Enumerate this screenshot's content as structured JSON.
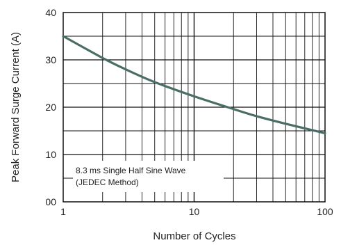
{
  "chart_data": {
    "type": "line",
    "xlabel": "Number of Cycles",
    "ylabel": "Peak Forward Surge Current (A)",
    "x_scale": "log",
    "xlim": [
      1,
      100
    ],
    "ylim": [
      0,
      40
    ],
    "x_ticks": [
      1,
      10,
      100
    ],
    "x_tick_labels": [
      "1",
      "10",
      "100"
    ],
    "y_ticks": [
      0,
      10,
      20,
      30,
      40
    ],
    "y_tick_labels": [
      "00",
      "10",
      "20",
      "30",
      "40"
    ],
    "grid": true,
    "annotation": [
      "8.3 ms Single Half Sine Wave",
      "(JEDEC Method)"
    ],
    "series": [
      {
        "color": "#4a6e66",
        "x": [
          1,
          2,
          3,
          5,
          10,
          20,
          30,
          50,
          100
        ],
        "y": [
          35,
          30.4,
          28,
          25.3,
          22.3,
          19.6,
          18.1,
          16.5,
          14.5
        ]
      }
    ]
  }
}
